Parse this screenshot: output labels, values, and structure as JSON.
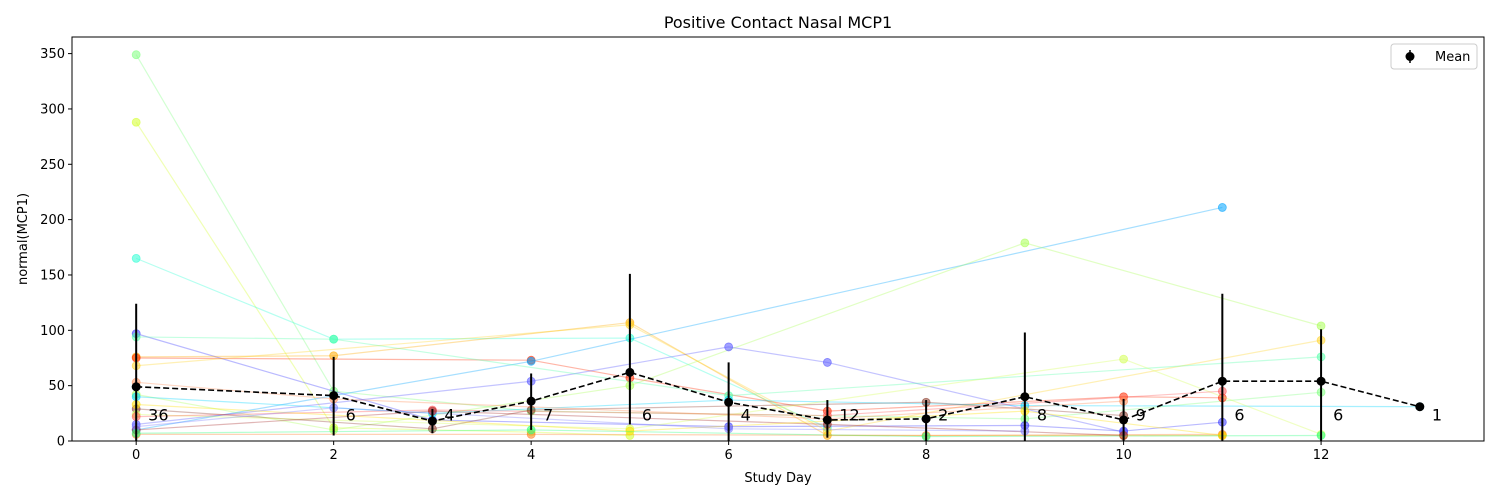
{
  "chart_data": {
    "type": "line",
    "title": "Positive Contact Nasal MCP1",
    "xlabel": "Study Day",
    "ylabel": "normal(MCP1)",
    "xlim": [
      -0.65,
      13.65
    ],
    "ylim": [
      0,
      365
    ],
    "x_ticks": [
      0,
      2,
      4,
      6,
      8,
      10,
      12
    ],
    "y_ticks": [
      0,
      50,
      100,
      150,
      200,
      250,
      300,
      350
    ],
    "grid": false,
    "legend": {
      "position": "top-right",
      "entries": [
        "Mean"
      ]
    },
    "mean_series": {
      "name": "Mean",
      "color": "#000000",
      "points": [
        {
          "x": 0,
          "y": 49,
          "err_low": 0,
          "err_high": 124,
          "n": "36"
        },
        {
          "x": 2,
          "y": 41,
          "err_low": 5,
          "err_high": 76,
          "n": "6"
        },
        {
          "x": 3,
          "y": 18,
          "err_low": 7,
          "err_high": 29,
          "n": "4"
        },
        {
          "x": 4,
          "y": 36,
          "err_low": 10,
          "err_high": 61,
          "n": "7"
        },
        {
          "x": 5,
          "y": 62,
          "err_low": 15,
          "err_high": 151,
          "n": "6"
        },
        {
          "x": 6,
          "y": 35,
          "err_low": 0,
          "err_high": 71,
          "n": "4"
        },
        {
          "x": 7,
          "y": 19,
          "err_low": 3,
          "err_high": 37,
          "n": "12"
        },
        {
          "x": 8,
          "y": 20,
          "err_low": 0,
          "err_high": 37,
          "n": "2"
        },
        {
          "x": 9,
          "y": 40,
          "err_low": 0,
          "err_high": 98,
          "n": "8"
        },
        {
          "x": 10,
          "y": 19,
          "err_low": 0,
          "err_high": 38,
          "n": "9"
        },
        {
          "x": 11,
          "y": 54,
          "err_low": 0,
          "err_high": 133,
          "n": "6"
        },
        {
          "x": 12,
          "y": 54,
          "err_low": 0,
          "err_high": 101,
          "n": "6"
        },
        {
          "x": 13,
          "y": 31,
          "err_low": 31,
          "err_high": 31,
          "n": "1"
        }
      ]
    },
    "subject_series": [
      {
        "color": "#7fff7f",
        "points": [
          [
            0,
            349
          ],
          [
            2,
            45
          ],
          [
            4,
            27
          ],
          [
            9,
            20
          ],
          [
            12,
            44
          ]
        ]
      },
      {
        "color": "#d4ff2a",
        "points": [
          [
            0,
            288
          ],
          [
            2,
            12
          ],
          [
            4,
            8
          ],
          [
            5,
            5
          ]
        ]
      },
      {
        "color": "#2affd4",
        "points": [
          [
            0,
            165
          ],
          [
            2,
            92
          ],
          [
            5,
            93
          ],
          [
            7,
            12
          ]
        ]
      },
      {
        "color": "#3a3aff",
        "points": [
          [
            0,
            97
          ],
          [
            3,
            19
          ],
          [
            6,
            13
          ],
          [
            9,
            14
          ],
          [
            10,
            9
          ],
          [
            11,
            17
          ]
        ]
      },
      {
        "color": "#ffaa00",
        "points": [
          [
            0,
            76
          ],
          [
            2,
            77
          ],
          [
            5,
            107
          ],
          [
            7,
            5
          ],
          [
            10,
            5
          ],
          [
            11,
            5
          ]
        ]
      },
      {
        "color": "#ff2a00",
        "points": [
          [
            0,
            75
          ],
          [
            4,
            73
          ],
          [
            5,
            57
          ],
          [
            7,
            27
          ],
          [
            10,
            40
          ],
          [
            11,
            39
          ]
        ]
      },
      {
        "color": "#ffd42a",
        "points": [
          [
            0,
            68
          ],
          [
            5,
            105
          ],
          [
            7,
            9
          ],
          [
            12,
            91
          ]
        ]
      },
      {
        "color": "#00a4ff",
        "points": [
          [
            0,
            10
          ],
          [
            4,
            72
          ],
          [
            11,
            211
          ]
        ]
      },
      {
        "color": "#aaff55",
        "points": [
          [
            0,
            42
          ],
          [
            2,
            10
          ],
          [
            5,
            50
          ],
          [
            9,
            179
          ],
          [
            12,
            104
          ]
        ]
      },
      {
        "color": "#5555ff",
        "points": [
          [
            0,
            15
          ],
          [
            4,
            54
          ],
          [
            6,
            85
          ],
          [
            7,
            71
          ],
          [
            10,
            8
          ]
        ]
      },
      {
        "color": "#8b3a2a",
        "points": [
          [
            0,
            29
          ],
          [
            3,
            11
          ],
          [
            4,
            28
          ],
          [
            8,
            35
          ],
          [
            10,
            23
          ]
        ]
      },
      {
        "color": "#ff7f2a",
        "points": [
          [
            0,
            6
          ],
          [
            4,
            6
          ],
          [
            8,
            5
          ],
          [
            11,
            6
          ]
        ]
      },
      {
        "color": "#55ffaa",
        "points": [
          [
            0,
            94
          ],
          [
            2,
            92
          ],
          [
            6,
            41
          ],
          [
            12,
            76
          ]
        ]
      },
      {
        "color": "#00d4ff",
        "points": [
          [
            0,
            40
          ],
          [
            3,
            25
          ],
          [
            6,
            37
          ],
          [
            9,
            32
          ],
          [
            13,
            31
          ]
        ]
      },
      {
        "color": "#d4ff55",
        "points": [
          [
            0,
            24
          ],
          [
            5,
            11
          ],
          [
            10,
            74
          ],
          [
            12,
            6
          ]
        ]
      },
      {
        "color": "#ff5555",
        "points": [
          [
            0,
            22
          ],
          [
            3,
            28
          ],
          [
            7,
            23
          ],
          [
            11,
            45
          ]
        ]
      },
      {
        "color": "#a52a2a",
        "points": [
          [
            0,
            10
          ],
          [
            3,
            27
          ],
          [
            7,
            15
          ],
          [
            10,
            5
          ]
        ]
      },
      {
        "color": "#ffe000",
        "points": [
          [
            0,
            33
          ],
          [
            5,
            9
          ],
          [
            9,
            27
          ],
          [
            11,
            5
          ]
        ]
      },
      {
        "color": "#7f7fff",
        "points": [
          [
            0,
            13
          ],
          [
            2,
            30
          ],
          [
            6,
            11
          ],
          [
            9,
            9
          ]
        ]
      },
      {
        "color": "#2aff7f",
        "points": [
          [
            0,
            7
          ],
          [
            4,
            10
          ],
          [
            8,
            4
          ],
          [
            12,
            5
          ]
        ]
      },
      {
        "color": "#ff8c55",
        "points": [
          [
            0,
            53
          ],
          [
            2,
            38
          ],
          [
            7,
            20
          ],
          [
            10,
            36
          ]
        ]
      }
    ]
  }
}
